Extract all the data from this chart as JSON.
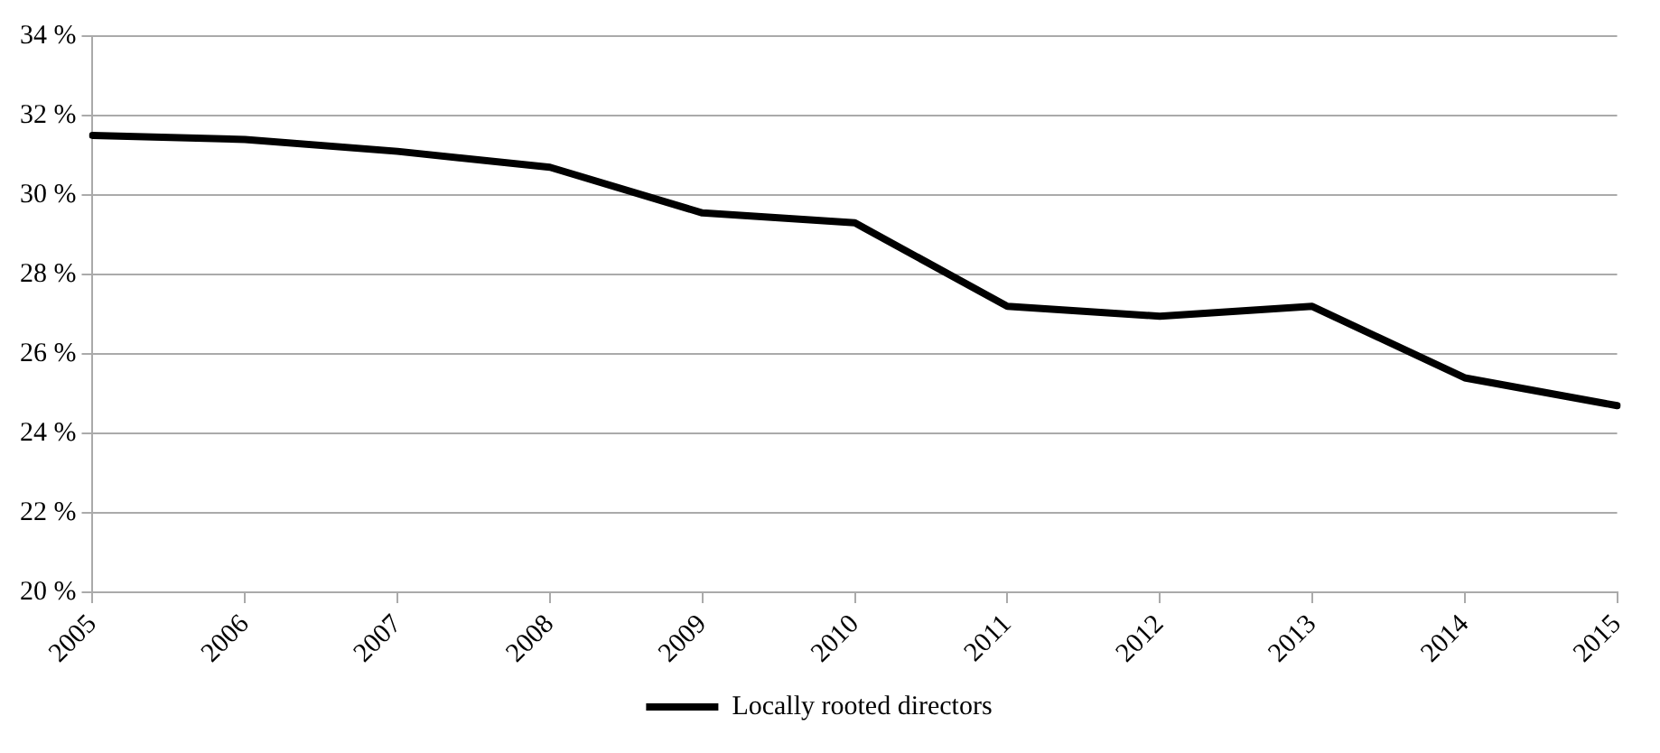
{
  "chart_data": {
    "type": "line",
    "categories": [
      "2005",
      "2006",
      "2007",
      "2008",
      "2009",
      "2010",
      "2011",
      "2012",
      "2013",
      "2014",
      "2015"
    ],
    "series": [
      {
        "name": "Locally rooted directors",
        "color": "#000000",
        "values": [
          31.5,
          31.4,
          31.1,
          30.7,
          29.55,
          29.3,
          27.2,
          26.95,
          27.2,
          25.4,
          24.7
        ]
      }
    ],
    "ylim": [
      20,
      34
    ],
    "yticks": [
      {
        "value": 20,
        "label": "20 %"
      },
      {
        "value": 22,
        "label": "22 %"
      },
      {
        "value": 24,
        "label": "24 %"
      },
      {
        "value": 26,
        "label": "26 %"
      },
      {
        "value": 28,
        "label": "28 %"
      },
      {
        "value": 30,
        "label": "30 %"
      },
      {
        "value": 32,
        "label": "32 %"
      },
      {
        "value": 34,
        "label": "34 %"
      }
    ],
    "grid": "y",
    "legend": "bottom",
    "marker": "none",
    "line_style": "solid"
  }
}
